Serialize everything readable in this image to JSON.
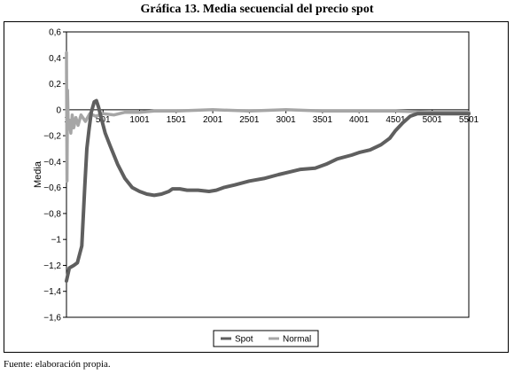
{
  "chart_data": {
    "type": "line",
    "title": "Gráfica 13. Media secuencial del precio spot",
    "xlabel": "",
    "ylabel": "Media",
    "xlim": [
      1,
      5501
    ],
    "ylim": [
      -1.6,
      0.6
    ],
    "x_ticks": [
      1,
      501,
      1001,
      1501,
      2001,
      2501,
      3001,
      3501,
      4001,
      4501,
      5001,
      5501
    ],
    "y_ticks": [
      0.6,
      0.4,
      0.2,
      0,
      -0.2,
      -0.4,
      -0.6,
      -0.8,
      -1,
      -1.2,
      -1.4,
      -1.6
    ],
    "y_tick_labels": [
      "0,6",
      "0,4",
      "0,2",
      "0",
      "−0,2",
      "−0,4",
      "−0,6",
      "−0,8",
      "−1",
      "−1,2",
      "−1,4",
      "−1,6"
    ],
    "legend_position": "bottom",
    "grid": false,
    "series": [
      {
        "name": "Spot",
        "color": "#5f5f5f",
        "points": [
          [
            1,
            -1.32
          ],
          [
            40,
            -1.22
          ],
          [
            100,
            -1.2
          ],
          [
            150,
            -1.18
          ],
          [
            210,
            -1.05
          ],
          [
            250,
            -0.6
          ],
          [
            280,
            -0.3
          ],
          [
            310,
            -0.15
          ],
          [
            340,
            -0.02
          ],
          [
            380,
            0.06
          ],
          [
            410,
            0.07
          ],
          [
            440,
            0.02
          ],
          [
            480,
            -0.07
          ],
          [
            530,
            -0.18
          ],
          [
            600,
            -0.28
          ],
          [
            700,
            -0.42
          ],
          [
            800,
            -0.53
          ],
          [
            900,
            -0.6
          ],
          [
            1000,
            -0.63
          ],
          [
            1100,
            -0.65
          ],
          [
            1200,
            -0.66
          ],
          [
            1300,
            -0.65
          ],
          [
            1400,
            -0.63
          ],
          [
            1450,
            -0.61
          ],
          [
            1550,
            -0.61
          ],
          [
            1650,
            -0.62
          ],
          [
            1800,
            -0.62
          ],
          [
            1950,
            -0.63
          ],
          [
            2050,
            -0.62
          ],
          [
            2150,
            -0.6
          ],
          [
            2300,
            -0.58
          ],
          [
            2500,
            -0.55
          ],
          [
            2700,
            -0.53
          ],
          [
            2900,
            -0.5
          ],
          [
            3050,
            -0.48
          ],
          [
            3200,
            -0.46
          ],
          [
            3400,
            -0.45
          ],
          [
            3550,
            -0.42
          ],
          [
            3700,
            -0.38
          ],
          [
            3900,
            -0.35
          ],
          [
            4001,
            -0.33
          ],
          [
            4150,
            -0.31
          ],
          [
            4300,
            -0.27
          ],
          [
            4420,
            -0.22
          ],
          [
            4500,
            -0.16
          ],
          [
            4600,
            -0.1
          ],
          [
            4700,
            -0.05
          ],
          [
            4800,
            -0.03
          ],
          [
            5000,
            -0.03
          ],
          [
            5200,
            -0.03
          ],
          [
            5501,
            -0.03
          ]
        ]
      },
      {
        "name": "Normal",
        "color": "#a6a6a6",
        "points": [
          [
            1,
            0.44
          ],
          [
            8,
            -0.55
          ],
          [
            15,
            0.15
          ],
          [
            25,
            -0.12
          ],
          [
            40,
            -0.08
          ],
          [
            60,
            -0.18
          ],
          [
            80,
            -0.04
          ],
          [
            100,
            -0.14
          ],
          [
            130,
            -0.06
          ],
          [
            160,
            -0.12
          ],
          [
            200,
            -0.04
          ],
          [
            260,
            -0.09
          ],
          [
            320,
            -0.03
          ],
          [
            400,
            -0.05
          ],
          [
            500,
            -0.03
          ],
          [
            650,
            -0.04
          ],
          [
            800,
            -0.02
          ],
          [
            1000,
            -0.02
          ],
          [
            1200,
            -0.01
          ],
          [
            1500,
            -0.01
          ],
          [
            2000,
            0.0
          ],
          [
            2500,
            -0.01
          ],
          [
            3001,
            0.0
          ],
          [
            3500,
            -0.01
          ],
          [
            4001,
            -0.01
          ],
          [
            4500,
            -0.01
          ],
          [
            5001,
            -0.02
          ],
          [
            5501,
            -0.02
          ]
        ]
      }
    ]
  },
  "source_note": "Fuente: elaboración propia."
}
